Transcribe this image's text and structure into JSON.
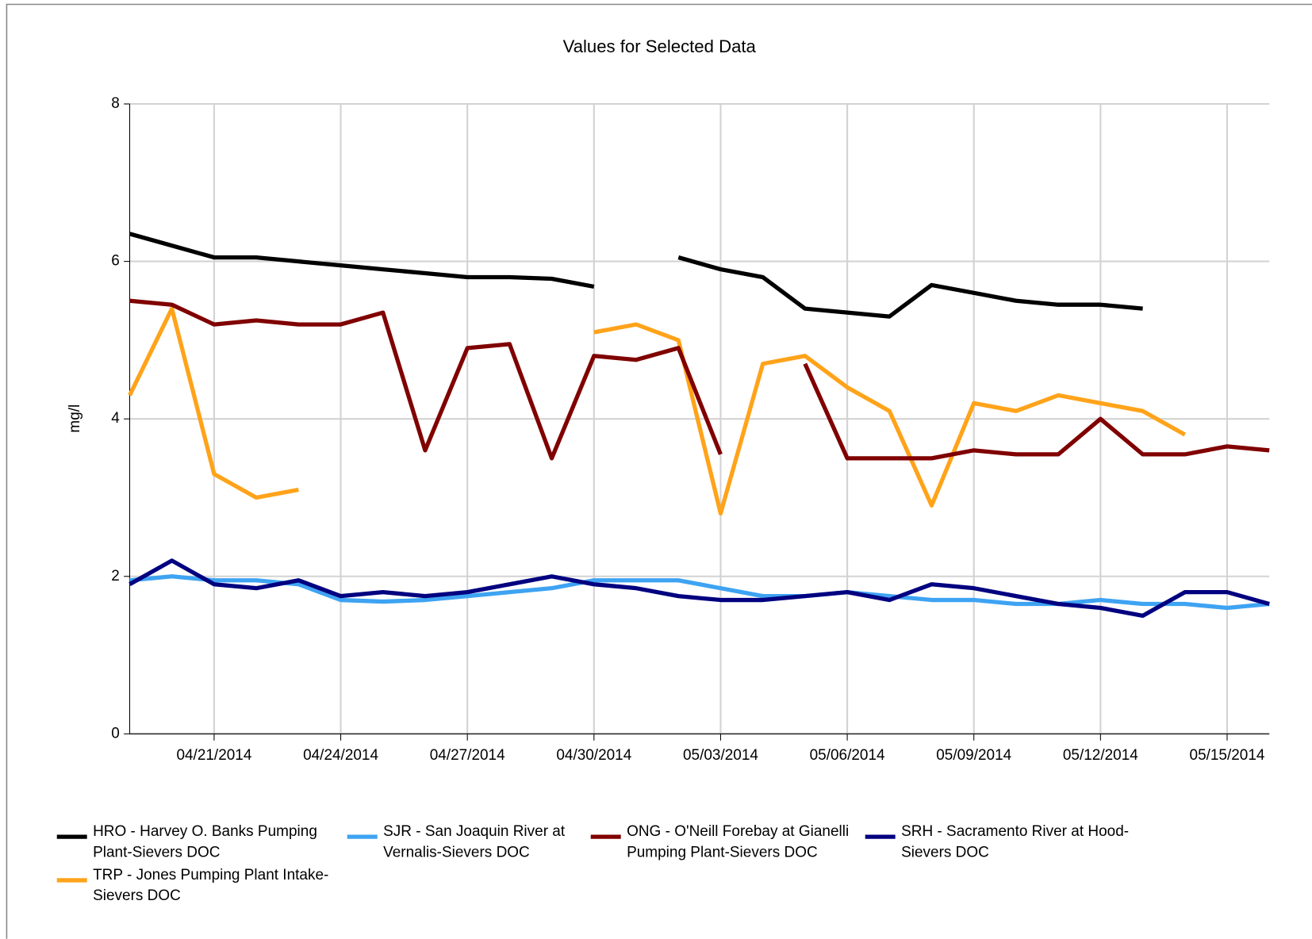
{
  "chart_data": {
    "type": "line",
    "title": "Values for Selected Data",
    "y_label": "mg/l",
    "x": [
      "2014-04-19",
      "2014-04-20",
      "2014-04-21",
      "2014-04-22",
      "2014-04-23",
      "2014-04-24",
      "2014-04-25",
      "2014-04-26",
      "2014-04-27",
      "2014-04-28",
      "2014-04-29",
      "2014-04-30",
      "2014-05-01",
      "2014-05-02",
      "2014-05-03",
      "2014-05-04",
      "2014-05-05",
      "2014-05-06",
      "2014-05-07",
      "2014-05-08",
      "2014-05-09",
      "2014-05-10",
      "2014-05-11",
      "2014-05-12",
      "2014-05-13",
      "2014-05-14",
      "2014-05-15",
      "2014-05-16"
    ],
    "xlim": [
      "2014-04-19",
      "2014-05-16"
    ],
    "xticks": [
      {
        "value": "2014-04-21",
        "label": "04/21/2014"
      },
      {
        "value": "2014-04-24",
        "label": "04/24/2014"
      },
      {
        "value": "2014-04-27",
        "label": "04/27/2014"
      },
      {
        "value": "2014-04-30",
        "label": "04/30/2014"
      },
      {
        "value": "2014-05-03",
        "label": "05/03/2014"
      },
      {
        "value": "2014-05-06",
        "label": "05/06/2014"
      },
      {
        "value": "2014-05-09",
        "label": "05/09/2014"
      },
      {
        "value": "2014-05-12",
        "label": "05/12/2014"
      },
      {
        "value": "2014-05-15",
        "label": "05/15/2014"
      }
    ],
    "ylim": [
      0,
      8
    ],
    "yticks": [
      0,
      2,
      4,
      6,
      8
    ],
    "grid": true,
    "legend": "bottom",
    "series": [
      {
        "name": "HRO - Harvey O. Banks Pumping Plant-Sievers DOC",
        "color": "#000000",
        "values": [
          6.35,
          6.2,
          6.05,
          6.05,
          6.0,
          5.95,
          5.9,
          5.85,
          5.8,
          5.8,
          5.78,
          5.68,
          null,
          6.05,
          5.9,
          5.8,
          5.4,
          5.35,
          5.3,
          5.7,
          5.6,
          5.5,
          5.45,
          5.45,
          5.4,
          null,
          null,
          null
        ]
      },
      {
        "name": "SJR - San Joaquin River at Vernalis-Sievers DOC",
        "color": "#3ea3f2",
        "values": [
          1.95,
          2.0,
          1.95,
          1.95,
          1.9,
          1.7,
          1.68,
          1.7,
          1.75,
          1.8,
          1.85,
          1.95,
          1.95,
          1.95,
          1.85,
          1.75,
          1.75,
          1.8,
          1.75,
          1.7,
          1.7,
          1.65,
          1.65,
          1.7,
          1.65,
          1.65,
          1.6,
          1.65
        ]
      },
      {
        "name": "ONG - O'Neill Forebay at Gianelli Pumping Plant-Sievers DOC",
        "color": "#800000",
        "values": [
          5.5,
          5.45,
          5.2,
          5.25,
          5.2,
          5.2,
          5.35,
          3.6,
          4.9,
          4.95,
          3.5,
          4.8,
          4.75,
          4.9,
          3.55,
          null,
          4.7,
          3.5,
          3.5,
          3.5,
          3.6,
          3.55,
          3.55,
          4.0,
          3.55,
          3.55,
          3.65,
          3.6
        ]
      },
      {
        "name": "SRH - Sacramento River at Hood-Sievers DOC",
        "color": "#000080",
        "values": [
          1.9,
          2.2,
          1.9,
          1.85,
          1.95,
          1.75,
          1.8,
          1.75,
          1.8,
          1.9,
          2.0,
          1.9,
          1.85,
          1.75,
          1.7,
          1.7,
          1.75,
          1.8,
          1.7,
          1.9,
          1.85,
          1.75,
          1.65,
          1.6,
          1.5,
          1.8,
          1.8,
          1.65
        ]
      },
      {
        "name": "TRP - Jones Pumping Plant Intake-Sievers DOC",
        "color": "#ffa31a",
        "values": [
          4.3,
          5.4,
          3.3,
          3.0,
          3.1,
          null,
          null,
          null,
          null,
          null,
          null,
          5.1,
          5.2,
          5.0,
          2.8,
          4.7,
          4.8,
          4.4,
          4.1,
          2.9,
          4.2,
          4.1,
          4.3,
          4.2,
          4.1,
          3.8,
          null,
          null
        ]
      }
    ]
  }
}
